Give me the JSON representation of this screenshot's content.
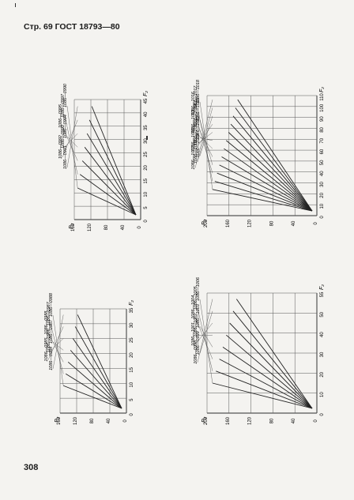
{
  "header": {
    "text": "Стр. 69 ГОСТ 18793—80"
  },
  "footer": {
    "page_number": "308"
  },
  "charts": [
    {
      "id": "top-left",
      "y_axis": {
        "label": "P₂",
        "ticks": [
          "0",
          "40",
          "80",
          "120",
          "160"
        ]
      },
      "x_axis": {
        "label": "F₂",
        "ticks": [
          "0",
          "5",
          "10",
          "15",
          "20",
          "25",
          "30",
          "35",
          "40",
          "45"
        ]
      },
      "labels": [
        "1086—0990",
        "1086—0997",
        "1086—0995",
        "1086—0994",
        "1086—0993",
        "1086—0992",
        "1086—0991"
      ]
    },
    {
      "id": "top-right",
      "y_axis": {
        "label": "P₂",
        "ticks": [
          "0",
          "40",
          "80",
          "120",
          "160",
          "200"
        ]
      },
      "x_axis": {
        "label": "F₂",
        "ticks": [
          "0",
          "10",
          "20",
          "30",
          "40",
          "50",
          "60",
          "70",
          "80",
          "90",
          "100",
          "110"
        ]
      },
      "labels": [
        "1086—1018",
        "1086—1017",
        "1086—1016",
        "1086—1015",
        "1086—1014",
        "1086—1013",
        "1086—1012",
        "1086—1011",
        "1086—1010",
        "1086—1009",
        "1086—1008",
        "1086—1007"
      ]
    },
    {
      "id": "bottom-left",
      "y_axis": {
        "label": "P₂",
        "ticks": [
          "0",
          "40",
          "80",
          "120",
          "160"
        ]
      },
      "x_axis": {
        "label": "F₂",
        "ticks": [
          "0",
          "5",
          "10",
          "15",
          "20",
          "25",
          "30",
          "35"
        ]
      },
      "labels": [
        "1086—0988",
        "1086—0987",
        "1086—0988",
        "1086—0987",
        "1086—0986",
        "1086—0985",
        "1086—0984"
      ]
    },
    {
      "id": "bottom-right",
      "y_axis": {
        "label": "P₂",
        "ticks": [
          "0",
          "40",
          "80",
          "120",
          "160",
          "200"
        ]
      },
      "x_axis": {
        "label": "F₂",
        "ticks": [
          "0",
          "10",
          "20",
          "30",
          "40",
          "50",
          "55"
        ]
      },
      "labels": [
        "1086—1006",
        "1086—1005",
        "1086—1004",
        "1086—1003",
        "1086—1002",
        "1086—1001",
        "1086—0999",
        "1086—0998"
      ]
    }
  ]
}
